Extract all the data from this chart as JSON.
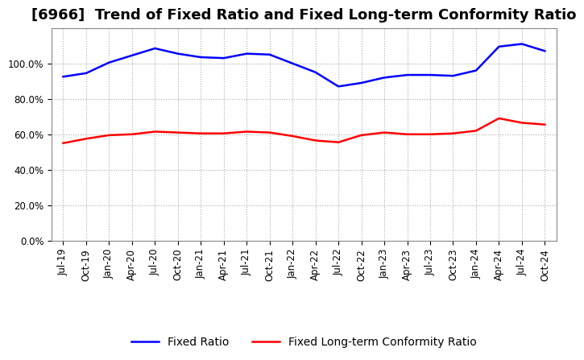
{
  "title": "[6966]  Trend of Fixed Ratio and Fixed Long-term Conformity Ratio",
  "x_labels": [
    "Jul-19",
    "Oct-19",
    "Jan-20",
    "Apr-20",
    "Jul-20",
    "Oct-20",
    "Jan-21",
    "Apr-21",
    "Jul-21",
    "Oct-21",
    "Jan-22",
    "Apr-22",
    "Jul-22",
    "Oct-22",
    "Jan-23",
    "Apr-23",
    "Jul-23",
    "Oct-23",
    "Jan-24",
    "Apr-24",
    "Jul-24",
    "Oct-24"
  ],
  "fixed_ratio": [
    92.5,
    94.5,
    100.5,
    104.5,
    108.5,
    105.5,
    103.5,
    103.0,
    105.5,
    105.0,
    100.0,
    95.0,
    87.0,
    89.0,
    92.0,
    93.5,
    93.5,
    93.0,
    96.0,
    109.5,
    111.0,
    107.0
  ],
  "fixed_lt_ratio": [
    55.0,
    57.5,
    59.5,
    60.0,
    61.5,
    61.0,
    60.5,
    60.5,
    61.5,
    61.0,
    59.0,
    56.5,
    55.5,
    59.5,
    61.0,
    60.0,
    60.0,
    60.5,
    62.0,
    69.0,
    66.5,
    65.5
  ],
  "fixed_ratio_color": "#0000FF",
  "fixed_lt_ratio_color": "#FF0000",
  "background_color": "#FFFFFF",
  "plot_bg_color": "#FFFFFF",
  "grid_color": "#AAAAAA",
  "ylim": [
    0,
    120
  ],
  "yticks": [
    0,
    20,
    40,
    60,
    80,
    100
  ],
  "ytick_labels": [
    "0.0%",
    "20.0%",
    "40.0%",
    "60.0%",
    "80.0%",
    "100.0%"
  ],
  "legend_fixed_ratio": "Fixed Ratio",
  "legend_fixed_lt_ratio": "Fixed Long-term Conformity Ratio",
  "title_fontsize": 13,
  "tick_fontsize": 8.5,
  "legend_fontsize": 10,
  "line_width": 1.8
}
